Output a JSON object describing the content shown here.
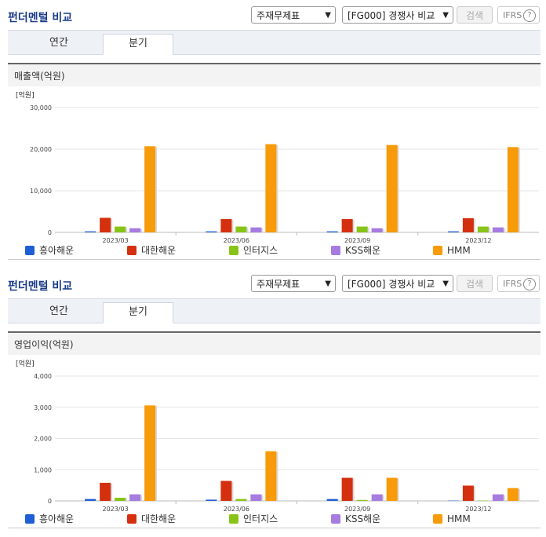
{
  "panels": [
    {
      "title": "펀더멘털 비교",
      "select1": "주재무제표",
      "select2": "[FG000] 경쟁사 비교",
      "search_label": "검색",
      "ifrs_label": "IFRS",
      "help_glyph": "?",
      "tabs": [
        "연간",
        "분기"
      ],
      "active_tab": "분기",
      "subtitle": "매출액(억원)"
    },
    {
      "title": "펀더멘털 비교",
      "select1": "주재무제표",
      "select2": "[FG000] 경쟁사 비교",
      "search_label": "검색",
      "ifrs_label": "IFRS",
      "help_glyph": "?",
      "tabs": [
        "연간",
        "분기"
      ],
      "active_tab": "분기",
      "subtitle": "영업이익(억원)"
    }
  ],
  "colors": {
    "흥아해운": "#1f5fd6",
    "대한해운": "#d4300f",
    "인터지스": "#88c417",
    "KSS해운": "#a67ce0",
    "HMM": "#f79b0a",
    "title": "#1a3c8a"
  },
  "chart_data": [
    {
      "type": "bar",
      "unit_label": "[억원]",
      "categories": [
        "2023/03",
        "2023/06",
        "2023/09",
        "2023/12"
      ],
      "ylim": [
        0,
        30000
      ],
      "yticks": [
        "0",
        "10,000",
        "20,000",
        "30,000"
      ],
      "ytick_values": [
        0,
        10000,
        20000,
        30000
      ],
      "series": [
        {
          "name": "흥아해운",
          "values": [
            250,
            250,
            250,
            250
          ]
        },
        {
          "name": "대한해운",
          "values": [
            3500,
            3200,
            3200,
            3400
          ]
        },
        {
          "name": "인터지스",
          "values": [
            1400,
            1400,
            1400,
            1400
          ]
        },
        {
          "name": "KSS해운",
          "values": [
            1000,
            1200,
            1000,
            1200
          ]
        },
        {
          "name": "HMM",
          "values": [
            20700,
            21200,
            21000,
            20500
          ]
        }
      ],
      "grid": true,
      "legend": "bottom"
    },
    {
      "type": "bar",
      "unit_label": "[억원]",
      "categories": [
        "2023/03",
        "2023/06",
        "2023/09",
        "2023/12"
      ],
      "ylim": [
        0,
        4000
      ],
      "yticks": [
        "0",
        "1,000",
        "2,000",
        "3,000",
        "4,000"
      ],
      "ytick_values": [
        0,
        1000,
        2000,
        3000,
        4000
      ],
      "series": [
        {
          "name": "흥아해운",
          "values": [
            60,
            40,
            60,
            10
          ]
        },
        {
          "name": "대한해운",
          "values": [
            580,
            640,
            740,
            490
          ]
        },
        {
          "name": "인터지스",
          "values": [
            100,
            60,
            30,
            10
          ]
        },
        {
          "name": "KSS해운",
          "values": [
            210,
            210,
            210,
            210
          ]
        },
        {
          "name": "HMM",
          "values": [
            3060,
            1590,
            740,
            410
          ]
        }
      ],
      "grid": true,
      "legend": "bottom"
    }
  ]
}
